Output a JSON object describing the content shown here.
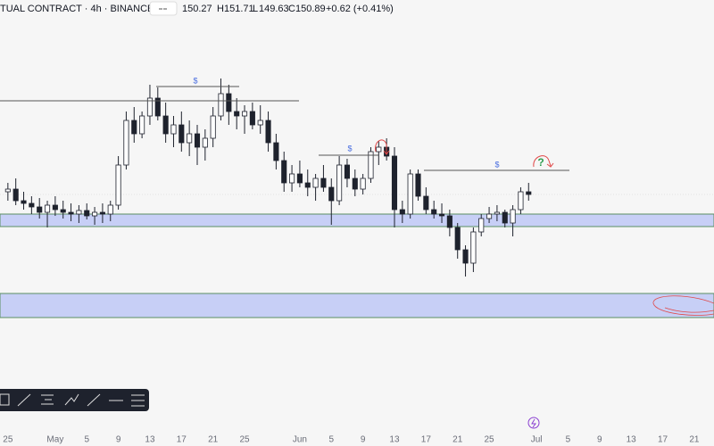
{
  "header": {
    "symbol": "TUAL CONTRACT · 4h · BINANCE",
    "open": "150.27",
    "high_label": "H",
    "high": "151.71",
    "low_label": "L",
    "low": "149.63",
    "close_label": "C",
    "close": "150.89",
    "change": "+0.62 (+0.41%)"
  },
  "annotations": {
    "liquidity_1": "$",
    "liquidity_2": "$",
    "liquidity_3": "$",
    "question": "?"
  },
  "chart_data": {
    "type": "candlestick",
    "up_color": "#ffffff",
    "down_color": "#1e222d",
    "wick_color": "#1e222d",
    "xlim": [
      -1.0,
      89.5
    ],
    "ylim": [
      98.5,
      194.5
    ],
    "xticks": [
      {
        "value": 0,
        "label": "25"
      },
      {
        "value": 6,
        "label": "May"
      },
      {
        "value": 10,
        "label": "5"
      },
      {
        "value": 14,
        "label": "9"
      },
      {
        "value": 18,
        "label": "13"
      },
      {
        "value": 22,
        "label": "17"
      },
      {
        "value": 26,
        "label": "21"
      },
      {
        "value": 30,
        "label": "25"
      },
      {
        "value": 37,
        "label": "Jun"
      },
      {
        "value": 41,
        "label": "5"
      },
      {
        "value": 45,
        "label": "9"
      },
      {
        "value": 49,
        "label": "13"
      },
      {
        "value": 53,
        "label": "17"
      },
      {
        "value": 57,
        "label": "21"
      },
      {
        "value": 61,
        "label": "25"
      },
      {
        "value": 67,
        "label": "Jul"
      },
      {
        "value": 71,
        "label": "5"
      },
      {
        "value": 75,
        "label": "9"
      },
      {
        "value": 79,
        "label": "13"
      },
      {
        "value": 83,
        "label": "17"
      },
      {
        "value": 87,
        "label": "21"
      }
    ],
    "open": [
      151.5,
      152.1,
      149.5,
      148.9,
      148.1,
      146.9,
      148.5,
      147.5,
      146.9,
      146.5,
      147.3,
      146.1,
      146.9,
      146.5,
      148.5,
      157.5,
      167.5,
      164.5,
      168.5,
      172.5,
      168.5,
      164.5,
      166.5,
      162.5,
      164.5,
      161.5,
      163.5,
      168.5,
      173.5,
      169.5,
      168.5,
      169.5,
      166.5,
      167.5,
      162.5,
      158.5,
      153.5,
      155.5,
      153.5,
      152.5,
      154.5,
      152.5,
      149.5,
      157.5,
      154.5,
      152.1,
      154.5,
      160.5,
      161.5,
      159.5,
      147.5,
      146.5,
      155.5,
      150.5,
      147.5,
      146.5,
      146.1,
      143.5,
      138.5,
      135.5,
      142.5,
      145.5,
      146.5,
      146.9,
      144.5,
      147.5,
      151.5
    ],
    "high": [
      153.5,
      154.5,
      151.5,
      150.5,
      150.1,
      149.5,
      150.5,
      149.5,
      148.9,
      148.5,
      148.9,
      148.1,
      148.9,
      149.5,
      159.5,
      169.5,
      170.5,
      169.5,
      175.5,
      174.9,
      171.5,
      168.5,
      169.5,
      167.5,
      166.5,
      165.5,
      170.5,
      176.9,
      175.5,
      172.5,
      170.9,
      171.5,
      170.9,
      169.5,
      164.5,
      160.5,
      157.5,
      158.5,
      156.5,
      155.5,
      157.5,
      154.5,
      159.5,
      158.9,
      156.5,
      155.5,
      161.5,
      162.9,
      163.5,
      161.5,
      149.5,
      156.5,
      156.5,
      152.5,
      149.5,
      148.9,
      147.5,
      144.5,
      139.5,
      143.5,
      146.5,
      148.1,
      148.5,
      147.5,
      148.5,
      152.5,
      153.5
    ],
    "low": [
      149.5,
      148.5,
      147.5,
      146.5,
      145.5,
      143.5,
      146.1,
      145.5,
      144.9,
      144.5,
      145.3,
      144.1,
      144.5,
      144.9,
      147.5,
      156.5,
      162.5,
      163.5,
      166.5,
      167.5,
      162.5,
      161.5,
      160.5,
      159.5,
      157.5,
      158.5,
      161.5,
      167.5,
      166.5,
      165.5,
      164.5,
      165.5,
      164.5,
      160.5,
      156.5,
      151.5,
      151.5,
      152.5,
      150.5,
      149.5,
      151.5,
      144.1,
      148.5,
      152.5,
      150.5,
      150.9,
      153.5,
      157.5,
      158.5,
      143.5,
      144.5,
      145.5,
      149.5,
      146.5,
      145.5,
      144.5,
      141.5,
      136.5,
      132.5,
      133.5,
      141.5,
      144.5,
      144.9,
      143.5,
      141.5,
      146.5,
      149.5
    ],
    "close": [
      152.1,
      149.5,
      148.9,
      148.1,
      146.9,
      148.5,
      147.5,
      146.9,
      146.5,
      147.3,
      146.1,
      146.9,
      146.5,
      148.5,
      157.5,
      167.5,
      164.5,
      168.5,
      172.5,
      168.5,
      164.5,
      166.5,
      162.5,
      164.5,
      161.5,
      163.5,
      168.5,
      173.5,
      169.5,
      168.5,
      169.5,
      166.5,
      167.5,
      162.5,
      158.5,
      153.5,
      155.5,
      153.5,
      152.5,
      154.5,
      152.5,
      149.5,
      157.5,
      154.5,
      152.1,
      154.5,
      160.5,
      161.5,
      159.5,
      147.5,
      146.5,
      155.5,
      150.5,
      147.5,
      146.5,
      146.1,
      143.5,
      138.5,
      135.5,
      142.5,
      145.5,
      146.5,
      146.9,
      144.5,
      147.5,
      151.5,
      150.9
    ]
  }
}
